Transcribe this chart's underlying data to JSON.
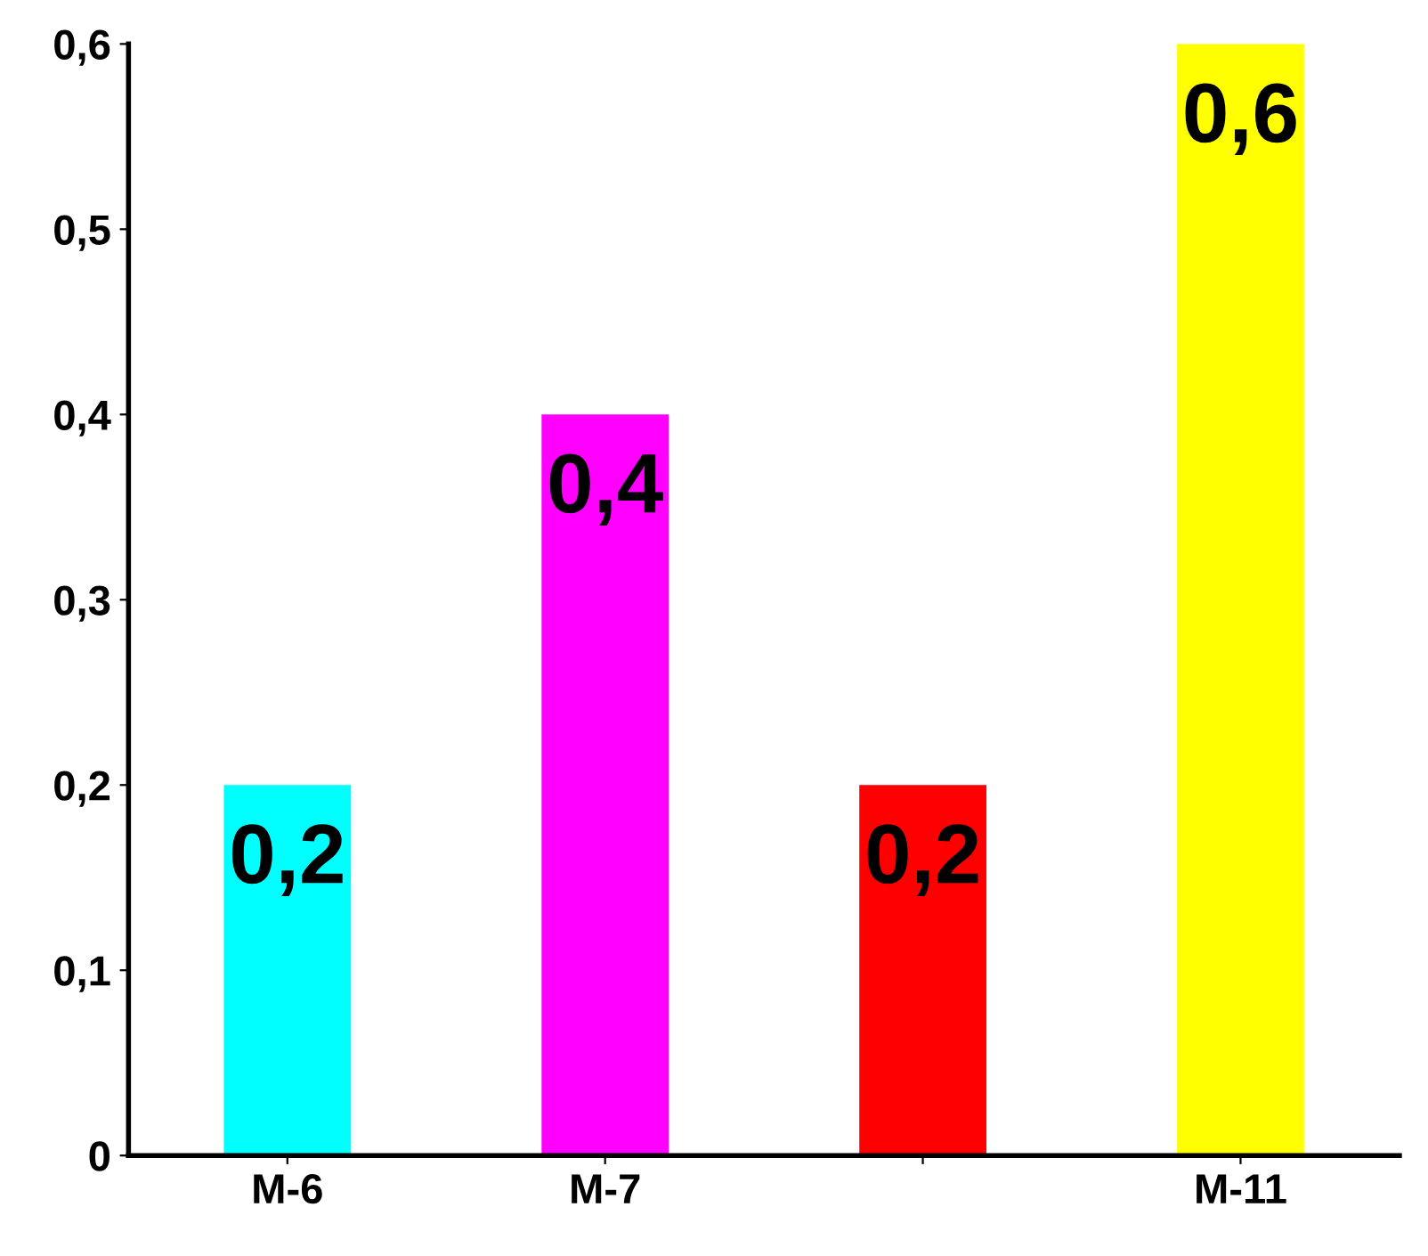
{
  "chart_data": {
    "type": "bar",
    "categories": [
      "М-6",
      "М-7",
      null,
      "М-11"
    ],
    "values": [
      0.2,
      0.4,
      0.2,
      0.6
    ],
    "colors": [
      "#00ffff",
      "#ff00ff",
      "#ff0000",
      "#ffff00"
    ],
    "value_labels": [
      "0,2",
      "0,4",
      "0,2",
      "0,6"
    ],
    "ylim": [
      0,
      0.6
    ],
    "yticks": [
      0,
      {
        "value": 0.1,
        "label": "0,1"
      },
      {
        "value": 0.2,
        "label": "0,2"
      },
      {
        "value": 0.3,
        "label": "0,3"
      },
      {
        "value": 0.4,
        "label": "0,4"
      },
      {
        "value": 0.5,
        "label": "0,5"
      },
      {
        "value": 0.6,
        "label": "0,6"
      }
    ],
    "grid": false,
    "legend": false
  }
}
